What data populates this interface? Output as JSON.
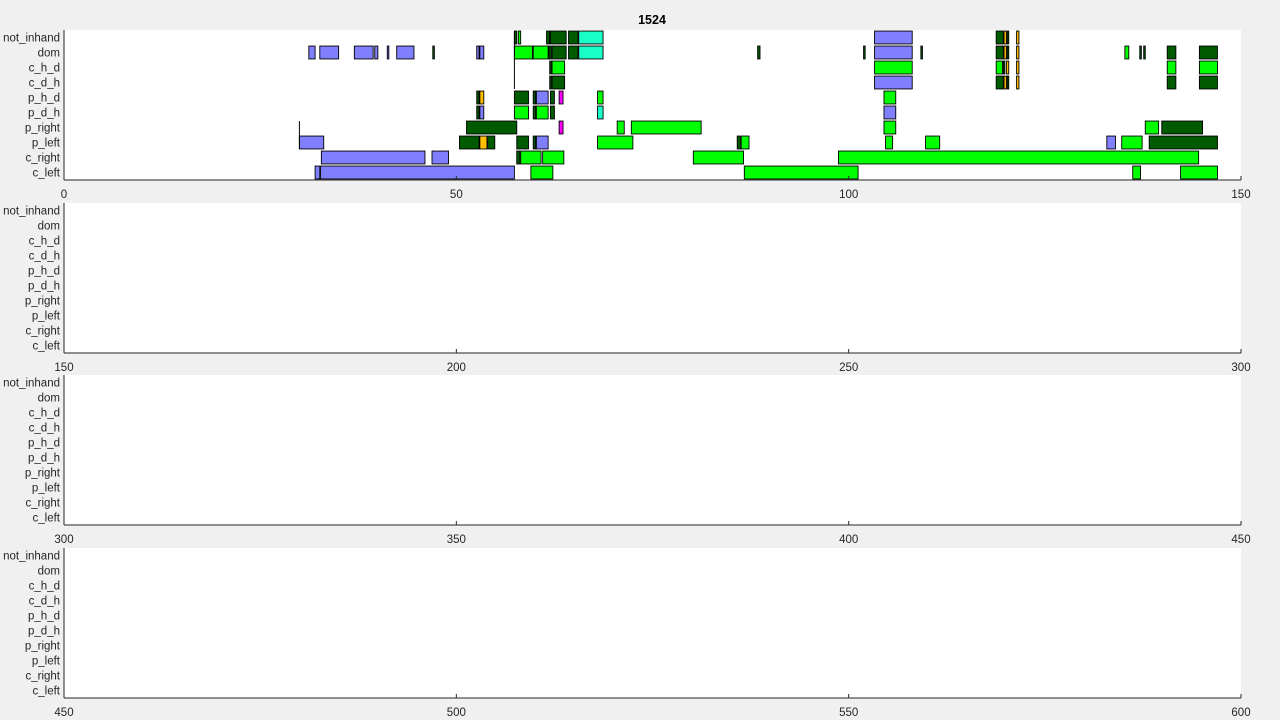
{
  "chart_data": {
    "type": "timeline",
    "title": "1524",
    "lanes": [
      "not_inhand",
      "dom",
      "c_h_d",
      "c_d_h",
      "p_h_d",
      "p_d_h",
      "p_right",
      "p_left",
      "c_right",
      "c_left"
    ],
    "colors": {
      "lavender": "#8080ff",
      "bright_green": "#00ff00",
      "dark_green": "#005a00",
      "aqua": "#1affc8",
      "orange": "#ffbe00",
      "magenta": "#ff00ff"
    },
    "panels": [
      {
        "xlim": [
          0,
          150
        ],
        "xticks": [
          0,
          50,
          100,
          150
        ]
      },
      {
        "xlim": [
          150,
          300
        ],
        "xticks": [
          150,
          200,
          250,
          300
        ]
      },
      {
        "xlim": [
          300,
          450
        ],
        "xticks": [
          300,
          350,
          400,
          450
        ]
      },
      {
        "xlim": [
          450,
          600
        ],
        "xticks": [
          450,
          500,
          550,
          600
        ]
      }
    ],
    "segments": [
      {
        "lane": "not_inhand",
        "start": 57.4,
        "end": 57.7,
        "color": "dark_green"
      },
      {
        "lane": "not_inhand",
        "start": 57.9,
        "end": 58.2,
        "color": "bright_green"
      },
      {
        "lane": "not_inhand",
        "start": 61.5,
        "end": 61.9,
        "color": "dark_green"
      },
      {
        "lane": "not_inhand",
        "start": 62.0,
        "end": 64.0,
        "color": "dark_green"
      },
      {
        "lane": "not_inhand",
        "start": 64.3,
        "end": 65.5,
        "color": "dark_green"
      },
      {
        "lane": "not_inhand",
        "start": 65.6,
        "end": 68.7,
        "color": "aqua"
      },
      {
        "lane": "not_inhand",
        "start": 103.3,
        "end": 108.1,
        "color": "lavender"
      },
      {
        "lane": "not_inhand",
        "start": 118.8,
        "end": 119.7,
        "color": "dark_green"
      },
      {
        "lane": "not_inhand",
        "start": 119.8,
        "end": 120.1,
        "color": "orange"
      },
      {
        "lane": "not_inhand",
        "start": 120.2,
        "end": 120.4,
        "color": "dark_green"
      },
      {
        "lane": "not_inhand",
        "start": 121.4,
        "end": 121.7,
        "color": "orange"
      },
      {
        "lane": "dom",
        "start": 31.2,
        "end": 32.0,
        "color": "lavender"
      },
      {
        "lane": "dom",
        "start": 32.6,
        "end": 35.0,
        "color": "lavender"
      },
      {
        "lane": "dom",
        "start": 37.0,
        "end": 39.4,
        "color": "lavender"
      },
      {
        "lane": "dom",
        "start": 39.6,
        "end": 40.0,
        "color": "lavender"
      },
      {
        "lane": "dom",
        "start": 41.2,
        "end": 41.4,
        "color": "lavender"
      },
      {
        "lane": "dom",
        "start": 42.4,
        "end": 44.6,
        "color": "lavender"
      },
      {
        "lane": "dom",
        "start": 47.0,
        "end": 47.2,
        "color": "dark_green"
      },
      {
        "lane": "dom",
        "start": 52.6,
        "end": 52.9,
        "color": "lavender"
      },
      {
        "lane": "dom",
        "start": 53.0,
        "end": 53.5,
        "color": "lavender"
      },
      {
        "lane": "dom",
        "start": 57.4,
        "end": 59.7,
        "color": "bright_green"
      },
      {
        "lane": "dom",
        "start": 59.8,
        "end": 61.7,
        "color": "bright_green"
      },
      {
        "lane": "dom",
        "start": 61.8,
        "end": 62.1,
        "color": "dark_green"
      },
      {
        "lane": "dom",
        "start": 62.2,
        "end": 64.0,
        "color": "dark_green"
      },
      {
        "lane": "dom",
        "start": 64.3,
        "end": 65.5,
        "color": "dark_green"
      },
      {
        "lane": "dom",
        "start": 65.6,
        "end": 68.7,
        "color": "aqua"
      },
      {
        "lane": "dom",
        "start": 88.4,
        "end": 88.7,
        "color": "dark_green"
      },
      {
        "lane": "dom",
        "start": 101.9,
        "end": 102.1,
        "color": "dark_green"
      },
      {
        "lane": "dom",
        "start": 103.3,
        "end": 108.1,
        "color": "lavender"
      },
      {
        "lane": "dom",
        "start": 109.2,
        "end": 109.4,
        "color": "dark_green"
      },
      {
        "lane": "dom",
        "start": 118.8,
        "end": 119.7,
        "color": "dark_green"
      },
      {
        "lane": "dom",
        "start": 119.8,
        "end": 120.1,
        "color": "orange"
      },
      {
        "lane": "dom",
        "start": 120.2,
        "end": 120.4,
        "color": "dark_green"
      },
      {
        "lane": "dom",
        "start": 121.4,
        "end": 121.7,
        "color": "orange"
      },
      {
        "lane": "dom",
        "start": 135.2,
        "end": 135.7,
        "color": "bright_green"
      },
      {
        "lane": "dom",
        "start": 137.1,
        "end": 137.3,
        "color": "dark_green"
      },
      {
        "lane": "dom",
        "start": 137.6,
        "end": 137.8,
        "color": "dark_green"
      },
      {
        "lane": "dom",
        "start": 140.6,
        "end": 141.7,
        "color": "dark_green"
      },
      {
        "lane": "dom",
        "start": 144.7,
        "end": 147.0,
        "color": "dark_green"
      },
      {
        "lane": "c_h_d",
        "start": 61.9,
        "end": 62.1,
        "color": "dark_green"
      },
      {
        "lane": "c_h_d",
        "start": 62.2,
        "end": 63.8,
        "color": "bright_green"
      },
      {
        "lane": "c_h_d",
        "start": 103.3,
        "end": 108.1,
        "color": "bright_green"
      },
      {
        "lane": "c_h_d",
        "start": 118.8,
        "end": 119.6,
        "color": "bright_green"
      },
      {
        "lane": "c_h_d",
        "start": 119.7,
        "end": 119.9,
        "color": "dark_green"
      },
      {
        "lane": "c_h_d",
        "start": 120.1,
        "end": 120.4,
        "color": "orange"
      },
      {
        "lane": "c_h_d",
        "start": 121.4,
        "end": 121.7,
        "color": "orange"
      },
      {
        "lane": "c_h_d",
        "start": 140.6,
        "end": 141.7,
        "color": "bright_green"
      },
      {
        "lane": "c_h_d",
        "start": 144.7,
        "end": 147.0,
        "color": "bright_green"
      },
      {
        "lane": "c_d_h",
        "start": 61.9,
        "end": 62.1,
        "color": "dark_green"
      },
      {
        "lane": "c_d_h",
        "start": 62.2,
        "end": 63.8,
        "color": "dark_green"
      },
      {
        "lane": "c_d_h",
        "start": 103.3,
        "end": 108.1,
        "color": "lavender"
      },
      {
        "lane": "c_d_h",
        "start": 118.8,
        "end": 119.7,
        "color": "dark_green"
      },
      {
        "lane": "c_d_h",
        "start": 119.8,
        "end": 120.1,
        "color": "orange"
      },
      {
        "lane": "c_d_h",
        "start": 120.2,
        "end": 120.4,
        "color": "dark_green"
      },
      {
        "lane": "c_d_h",
        "start": 121.4,
        "end": 121.7,
        "color": "orange"
      },
      {
        "lane": "c_d_h",
        "start": 140.6,
        "end": 141.7,
        "color": "dark_green"
      },
      {
        "lane": "c_d_h",
        "start": 144.7,
        "end": 147.0,
        "color": "dark_green"
      },
      {
        "lane": "p_h_d",
        "start": 52.6,
        "end": 52.9,
        "color": "dark_green"
      },
      {
        "lane": "p_h_d",
        "start": 53.0,
        "end": 53.5,
        "color": "orange"
      },
      {
        "lane": "p_h_d",
        "start": 57.4,
        "end": 59.2,
        "color": "dark_green"
      },
      {
        "lane": "p_h_d",
        "start": 59.8,
        "end": 60.1,
        "color": "dark_green"
      },
      {
        "lane": "p_h_d",
        "start": 60.2,
        "end": 61.7,
        "color": "lavender"
      },
      {
        "lane": "p_h_d",
        "start": 62.0,
        "end": 62.5,
        "color": "dark_green"
      },
      {
        "lane": "p_h_d",
        "start": 63.1,
        "end": 63.6,
        "color": "magenta"
      },
      {
        "lane": "p_h_d",
        "start": 68.0,
        "end": 68.7,
        "color": "bright_green"
      },
      {
        "lane": "p_h_d",
        "start": 104.5,
        "end": 106.0,
        "color": "bright_green"
      },
      {
        "lane": "p_d_h",
        "start": 52.6,
        "end": 52.9,
        "color": "dark_green"
      },
      {
        "lane": "p_d_h",
        "start": 53.0,
        "end": 53.5,
        "color": "lavender"
      },
      {
        "lane": "p_d_h",
        "start": 57.4,
        "end": 59.2,
        "color": "bright_green"
      },
      {
        "lane": "p_d_h",
        "start": 59.8,
        "end": 60.1,
        "color": "dark_green"
      },
      {
        "lane": "p_d_h",
        "start": 60.2,
        "end": 61.7,
        "color": "bright_green"
      },
      {
        "lane": "p_d_h",
        "start": 62.0,
        "end": 62.5,
        "color": "dark_green"
      },
      {
        "lane": "p_d_h",
        "start": 68.0,
        "end": 68.7,
        "color": "aqua"
      },
      {
        "lane": "p_d_h",
        "start": 104.5,
        "end": 106.0,
        "color": "lavender"
      },
      {
        "lane": "p_right",
        "start": 51.3,
        "end": 57.7,
        "color": "dark_green"
      },
      {
        "lane": "p_right",
        "start": 63.1,
        "end": 63.6,
        "color": "magenta"
      },
      {
        "lane": "p_right",
        "start": 70.5,
        "end": 71.4,
        "color": "bright_green"
      },
      {
        "lane": "p_right",
        "start": 72.3,
        "end": 81.2,
        "color": "bright_green"
      },
      {
        "lane": "p_right",
        "start": 104.5,
        "end": 106.0,
        "color": "bright_green"
      },
      {
        "lane": "p_right",
        "start": 137.8,
        "end": 139.5,
        "color": "bright_green"
      },
      {
        "lane": "p_right",
        "start": 139.9,
        "end": 145.1,
        "color": "dark_green"
      },
      {
        "lane": "p_left",
        "start": 30.0,
        "end": 33.1,
        "color": "lavender"
      },
      {
        "lane": "p_left",
        "start": 50.4,
        "end": 52.9,
        "color": "dark_green"
      },
      {
        "lane": "p_left",
        "start": 53.0,
        "end": 53.9,
        "color": "orange"
      },
      {
        "lane": "p_left",
        "start": 54.0,
        "end": 54.9,
        "color": "dark_green"
      },
      {
        "lane": "p_left",
        "start": 57.7,
        "end": 59.2,
        "color": "dark_green"
      },
      {
        "lane": "p_left",
        "start": 59.8,
        "end": 60.1,
        "color": "dark_green"
      },
      {
        "lane": "p_left",
        "start": 60.2,
        "end": 61.7,
        "color": "lavender"
      },
      {
        "lane": "p_left",
        "start": 68.0,
        "end": 72.5,
        "color": "bright_green"
      },
      {
        "lane": "p_left",
        "start": 85.8,
        "end": 86.2,
        "color": "dark_green"
      },
      {
        "lane": "p_left",
        "start": 86.3,
        "end": 87.3,
        "color": "bright_green"
      },
      {
        "lane": "p_left",
        "start": 104.7,
        "end": 105.6,
        "color": "bright_green"
      },
      {
        "lane": "p_left",
        "start": 109.8,
        "end": 111.6,
        "color": "bright_green"
      },
      {
        "lane": "p_left",
        "start": 132.9,
        "end": 134.0,
        "color": "lavender"
      },
      {
        "lane": "p_left",
        "start": 134.8,
        "end": 137.4,
        "color": "bright_green"
      },
      {
        "lane": "p_left",
        "start": 138.3,
        "end": 147.0,
        "color": "dark_green"
      },
      {
        "lane": "c_right",
        "start": 32.8,
        "end": 46.0,
        "color": "lavender"
      },
      {
        "lane": "c_right",
        "start": 46.9,
        "end": 49.0,
        "color": "lavender"
      },
      {
        "lane": "c_right",
        "start": 57.7,
        "end": 58.1,
        "color": "dark_green"
      },
      {
        "lane": "c_right",
        "start": 58.2,
        "end": 60.8,
        "color": "bright_green"
      },
      {
        "lane": "c_right",
        "start": 61.0,
        "end": 63.7,
        "color": "bright_green"
      },
      {
        "lane": "c_right",
        "start": 80.2,
        "end": 86.6,
        "color": "bright_green"
      },
      {
        "lane": "c_right",
        "start": 98.7,
        "end": 144.6,
        "color": "bright_green"
      },
      {
        "lane": "c_left",
        "start": 32.0,
        "end": 32.6,
        "color": "lavender"
      },
      {
        "lane": "c_left",
        "start": 32.7,
        "end": 57.4,
        "color": "lavender"
      },
      {
        "lane": "c_left",
        "start": 59.5,
        "end": 62.3,
        "color": "bright_green"
      },
      {
        "lane": "c_left",
        "start": 86.7,
        "end": 101.2,
        "color": "bright_green"
      },
      {
        "lane": "c_left",
        "start": 136.2,
        "end": 137.2,
        "color": "bright_green"
      },
      {
        "lane": "c_left",
        "start": 142.3,
        "end": 147.0,
        "color": "bright_green"
      }
    ],
    "markers": [
      {
        "lane": "p_left",
        "x": 30.0,
        "span_lanes": [
          "p_right",
          "p_left"
        ]
      },
      {
        "lane": "c_d_h",
        "x": 57.4,
        "span_lanes": [
          "not_inhand",
          "c_d_h"
        ]
      }
    ]
  }
}
